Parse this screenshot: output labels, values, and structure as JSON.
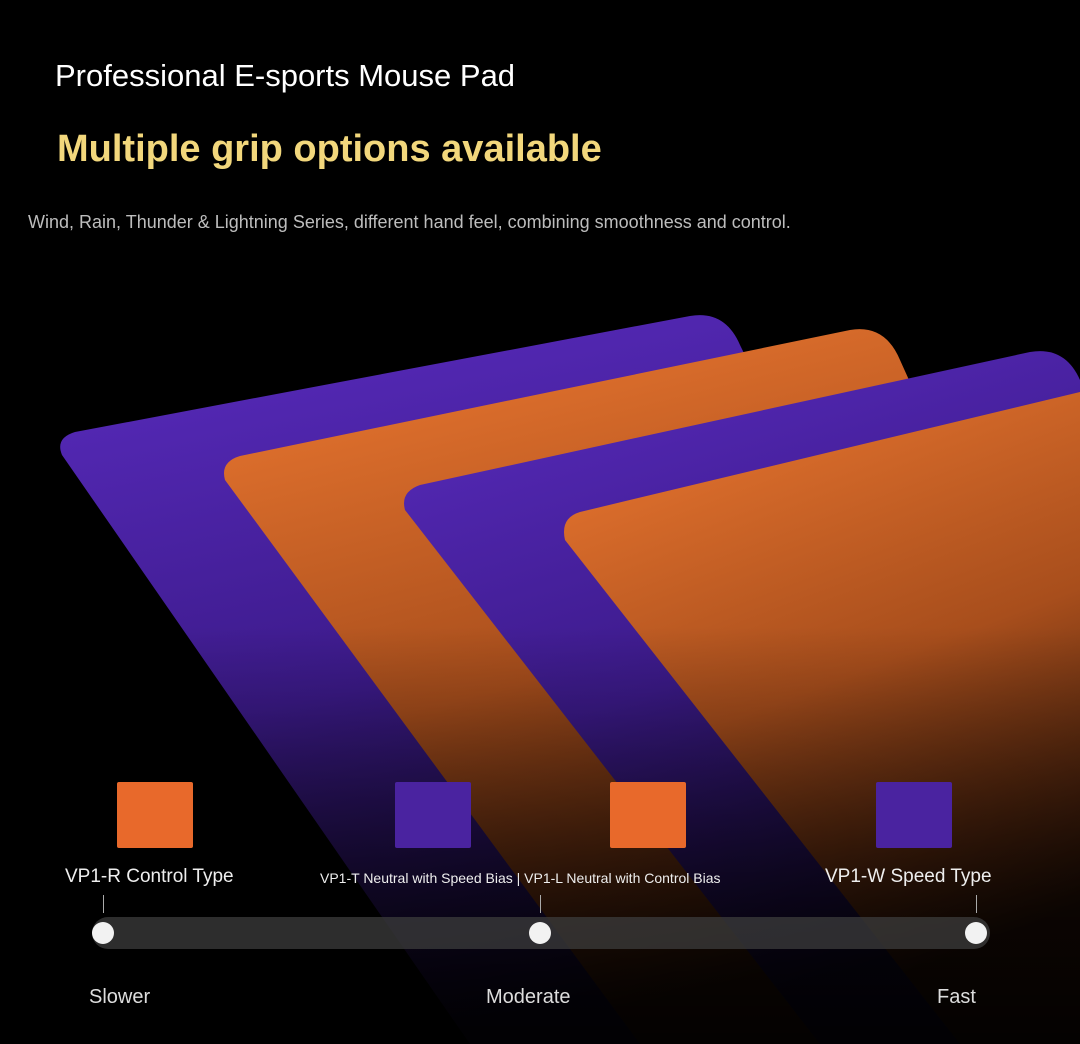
{
  "header": {
    "title": "Professional E-sports Mouse Pad",
    "subtitle": "Multiple grip options available",
    "description": "Wind, Rain, Thunder & Lightning Series, different hand feel, combining smoothness and control."
  },
  "colors": {
    "purple": "#4a23a0",
    "orange": "#e8692b",
    "accent": "#f2d77c"
  },
  "products": [
    {
      "label": "VP1-R Control Type",
      "color": "#e8692b"
    },
    {
      "label": "VP1-T Neutral with Speed Bias",
      "color": "#4a23a0"
    },
    {
      "label": "VP1-L Neutral with Control Bias",
      "color": "#e8692b"
    },
    {
      "label": "VP1-W Speed Type",
      "color": "#4a23a0"
    }
  ],
  "middle_label_separator": "|",
  "speed_scale": {
    "labels": [
      "Slower",
      "Moderate",
      "Fast"
    ]
  }
}
